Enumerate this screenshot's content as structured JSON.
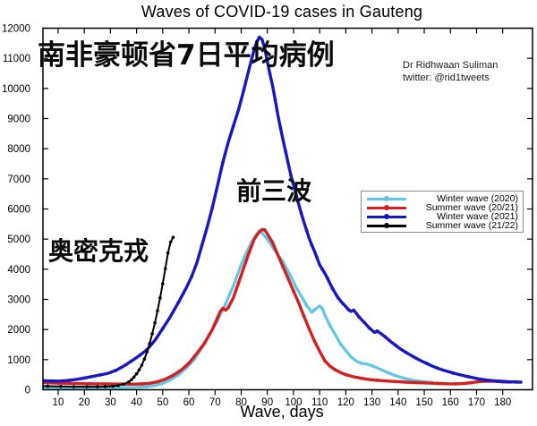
{
  "title": "Waves of COVID-19 cases in Gauteng",
  "attribution": {
    "line1": "Dr Ridhwaan Suliman",
    "line2": "twitter: @rid1tweets"
  },
  "annotations": {
    "headline_cn": "南非豪顿省7日平均病例",
    "first_three_waves_cn": "前三波",
    "omicron_cn": "奥密克戎"
  },
  "chart_data": {
    "type": "line",
    "title": "Waves of COVID-19 cases in Gauteng",
    "xlabel": "Wave, days",
    "ylabel": "",
    "grid": false,
    "legend_position": "right-middle",
    "xlim": [
      4.2,
      191.4
    ],
    "ylim": [
      0,
      12000
    ],
    "x_ticks": [
      10,
      20,
      30,
      40,
      50,
      60,
      70,
      80,
      90,
      100,
      110,
      120,
      130,
      140,
      150,
      160,
      170,
      180
    ],
    "y_ticks": [
      0,
      1000,
      2000,
      3000,
      4000,
      5000,
      6000,
      7000,
      8000,
      9000,
      10000,
      11000,
      12000
    ],
    "series": [
      {
        "name": "Winter wave (2020)",
        "color": "#5ec8e6",
        "line_width": 3.2,
        "points": [
          [
            1,
            60
          ],
          [
            6,
            52
          ],
          [
            12,
            50
          ],
          [
            18,
            52
          ],
          [
            24,
            58
          ],
          [
            30,
            60
          ],
          [
            36,
            68
          ],
          [
            40,
            80
          ],
          [
            44,
            100
          ],
          [
            47,
            140
          ],
          [
            50,
            210
          ],
          [
            53,
            330
          ],
          [
            56,
            500
          ],
          [
            59,
            720
          ],
          [
            62,
            1000
          ],
          [
            65,
            1400
          ],
          [
            68,
            1850
          ],
          [
            71,
            2300
          ],
          [
            74,
            2850
          ],
          [
            77,
            3450
          ],
          [
            80,
            4150
          ],
          [
            82,
            4550
          ],
          [
            84,
            4900
          ],
          [
            86,
            5180
          ],
          [
            87,
            5250
          ],
          [
            88,
            5200
          ],
          [
            90,
            5000
          ],
          [
            93,
            4600
          ],
          [
            96,
            4250
          ],
          [
            99,
            3750
          ],
          [
            101,
            3400
          ],
          [
            103,
            3100
          ],
          [
            105,
            2800
          ],
          [
            107,
            2570
          ],
          [
            108,
            2650
          ],
          [
            110,
            2780
          ],
          [
            111,
            2700
          ],
          [
            112,
            2480
          ],
          [
            114,
            2120
          ],
          [
            116,
            1820
          ],
          [
            118,
            1520
          ],
          [
            120,
            1300
          ],
          [
            122,
            1090
          ],
          [
            124,
            950
          ],
          [
            126,
            880
          ],
          [
            128,
            855
          ],
          [
            130,
            800
          ],
          [
            133,
            690
          ],
          [
            136,
            570
          ],
          [
            139,
            470
          ],
          [
            142,
            390
          ],
          [
            145,
            330
          ],
          [
            148,
            285
          ],
          [
            151,
            255
          ],
          [
            153,
            245
          ]
        ]
      },
      {
        "name": "Summer wave (20/21)",
        "color": "#d42020",
        "line_width": 3.4,
        "points": [
          [
            1,
            280
          ],
          [
            5,
            235
          ],
          [
            10,
            220
          ],
          [
            16,
            210
          ],
          [
            22,
            200
          ],
          [
            28,
            195
          ],
          [
            34,
            188
          ],
          [
            38,
            185
          ],
          [
            42,
            192
          ],
          [
            45,
            215
          ],
          [
            48,
            265
          ],
          [
            51,
            350
          ],
          [
            54,
            480
          ],
          [
            57,
            650
          ],
          [
            60,
            880
          ],
          [
            63,
            1200
          ],
          [
            66,
            1550
          ],
          [
            69,
            2000
          ],
          [
            71,
            2400
          ],
          [
            72,
            2600
          ],
          [
            73,
            2700
          ],
          [
            74,
            2640
          ],
          [
            75,
            2720
          ],
          [
            77,
            3050
          ],
          [
            79,
            3550
          ],
          [
            81,
            4050
          ],
          [
            83,
            4550
          ],
          [
            85,
            5000
          ],
          [
            87,
            5250
          ],
          [
            88,
            5320
          ],
          [
            89,
            5300
          ],
          [
            90,
            5180
          ],
          [
            92,
            4880
          ],
          [
            94,
            4480
          ],
          [
            96,
            4080
          ],
          [
            98,
            3680
          ],
          [
            100,
            3280
          ],
          [
            102,
            2880
          ],
          [
            104,
            2440
          ],
          [
            106,
            2020
          ],
          [
            108,
            1620
          ],
          [
            110,
            1280
          ],
          [
            112,
            960
          ],
          [
            114,
            780
          ],
          [
            116,
            660
          ],
          [
            118,
            570
          ],
          [
            120,
            500
          ],
          [
            123,
            430
          ],
          [
            126,
            380
          ],
          [
            129,
            340
          ],
          [
            132,
            315
          ],
          [
            135,
            295
          ],
          [
            139,
            272
          ],
          [
            143,
            252
          ],
          [
            147,
            237
          ],
          [
            151,
            225
          ],
          [
            155,
            212
          ],
          [
            159,
            200
          ],
          [
            162,
            195
          ],
          [
            165,
            205
          ],
          [
            168,
            235
          ],
          [
            171,
            270
          ],
          [
            174,
            288
          ],
          [
            177,
            280
          ],
          [
            180,
            262
          ],
          [
            183,
            252
          ]
        ]
      },
      {
        "name": "Winter wave (2021)",
        "color": "#1717c4",
        "line_width": 3.4,
        "points": [
          [
            2,
            320
          ],
          [
            5,
            300
          ],
          [
            8,
            288
          ],
          [
            11,
            292
          ],
          [
            14,
            310
          ],
          [
            17,
            345
          ],
          [
            20,
            390
          ],
          [
            23,
            440
          ],
          [
            26,
            490
          ],
          [
            29,
            545
          ],
          [
            32,
            640
          ],
          [
            35,
            780
          ],
          [
            38,
            950
          ],
          [
            41,
            1130
          ],
          [
            44,
            1330
          ],
          [
            47,
            1640
          ],
          [
            50,
            2030
          ],
          [
            53,
            2440
          ],
          [
            56,
            2900
          ],
          [
            59,
            3380
          ],
          [
            61,
            3750
          ],
          [
            63,
            4200
          ],
          [
            65,
            4800
          ],
          [
            67,
            5400
          ],
          [
            69,
            6050
          ],
          [
            71,
            6800
          ],
          [
            73,
            7550
          ],
          [
            75,
            8200
          ],
          [
            77,
            8750
          ],
          [
            79,
            9300
          ],
          [
            81,
            9950
          ],
          [
            83,
            10650
          ],
          [
            85,
            11300
          ],
          [
            86,
            11550
          ],
          [
            87,
            11700
          ],
          [
            88,
            11620
          ],
          [
            89,
            11330
          ],
          [
            90,
            10900
          ],
          [
            91,
            10480
          ],
          [
            92,
            10080
          ],
          [
            93,
            9620
          ],
          [
            94,
            9130
          ],
          [
            95,
            8700
          ],
          [
            96,
            8300
          ],
          [
            97,
            7900
          ],
          [
            98,
            7500
          ],
          [
            99,
            7120
          ],
          [
            100,
            6800
          ],
          [
            101,
            6480
          ],
          [
            102,
            6150
          ],
          [
            103,
            5850
          ],
          [
            104,
            5560
          ],
          [
            105,
            5300
          ],
          [
            106,
            5020
          ],
          [
            107,
            4800
          ],
          [
            108,
            4600
          ],
          [
            109,
            4380
          ],
          [
            110,
            4150
          ],
          [
            111,
            4000
          ],
          [
            112,
            3860
          ],
          [
            113,
            3700
          ],
          [
            114,
            3520
          ],
          [
            115,
            3350
          ],
          [
            116,
            3200
          ],
          [
            117,
            3060
          ],
          [
            118,
            2950
          ],
          [
            119,
            2850
          ],
          [
            120,
            2760
          ],
          [
            121,
            2660
          ],
          [
            122,
            2600
          ],
          [
            123,
            2640
          ],
          [
            124,
            2540
          ],
          [
            125,
            2420
          ],
          [
            127,
            2240
          ],
          [
            129,
            2050
          ],
          [
            131,
            1900
          ],
          [
            132,
            1950
          ],
          [
            133,
            1890
          ],
          [
            135,
            1760
          ],
          [
            137,
            1610
          ],
          [
            139,
            1480
          ],
          [
            141,
            1350
          ],
          [
            143,
            1240
          ],
          [
            145,
            1140
          ],
          [
            147,
            1040
          ],
          [
            149,
            950
          ],
          [
            151,
            870
          ],
          [
            153,
            790
          ],
          [
            155,
            720
          ],
          [
            158,
            630
          ],
          [
            161,
            555
          ],
          [
            164,
            490
          ],
          [
            167,
            430
          ],
          [
            170,
            375
          ],
          [
            173,
            330
          ],
          [
            176,
            302
          ],
          [
            179,
            282
          ],
          [
            182,
            268
          ],
          [
            185,
            258
          ],
          [
            187,
            252
          ]
        ]
      },
      {
        "name": "Summer wave (21/22)",
        "color": "#000000",
        "line_width": 2,
        "points": [
          [
            1,
            135
          ],
          [
            6,
            120
          ],
          [
            11,
            110
          ],
          [
            16,
            103
          ],
          [
            21,
            100
          ],
          [
            25,
            100
          ],
          [
            28,
            105
          ],
          [
            31,
            118
          ],
          [
            33,
            140
          ],
          [
            35,
            185
          ],
          [
            37,
            260
          ],
          [
            38,
            330
          ],
          [
            39,
            420
          ],
          [
            40,
            530
          ],
          [
            41,
            660
          ],
          [
            42,
            820
          ],
          [
            43,
            1020
          ],
          [
            44,
            1260
          ],
          [
            45,
            1540
          ],
          [
            46,
            1860
          ],
          [
            47,
            2220
          ],
          [
            48,
            2620
          ],
          [
            49,
            3050
          ],
          [
            50,
            3520
          ],
          [
            51,
            4020
          ],
          [
            52,
            4540
          ],
          [
            53,
            4900
          ],
          [
            54,
            5060
          ]
        ]
      }
    ]
  }
}
